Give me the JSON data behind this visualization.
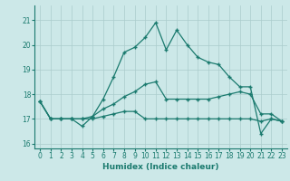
{
  "title": "",
  "xlabel": "Humidex (Indice chaleur)",
  "background_color": "#cce8e8",
  "grid_color": "#aacccc",
  "line_color": "#1a7a6e",
  "xlim": [
    -0.5,
    23.5
  ],
  "ylim": [
    15.8,
    21.6
  ],
  "yticks": [
    16,
    17,
    18,
    19,
    20,
    21
  ],
  "xticks": [
    0,
    1,
    2,
    3,
    4,
    5,
    6,
    7,
    8,
    9,
    10,
    11,
    12,
    13,
    14,
    15,
    16,
    17,
    18,
    19,
    20,
    21,
    22,
    23
  ],
  "line1_x": [
    0,
    1,
    2,
    3,
    4,
    5,
    6,
    7,
    8,
    9,
    10,
    11,
    12,
    13,
    14,
    15,
    16,
    17,
    18,
    19,
    20,
    21,
    22,
    23
  ],
  "line1_y": [
    17.7,
    17.0,
    17.0,
    17.0,
    16.7,
    17.1,
    17.8,
    18.7,
    19.7,
    19.9,
    20.3,
    20.9,
    19.8,
    20.6,
    20.0,
    19.5,
    19.3,
    19.2,
    18.7,
    18.3,
    18.3,
    16.4,
    17.0,
    16.9
  ],
  "line2_x": [
    0,
    1,
    2,
    3,
    4,
    5,
    6,
    7,
    8,
    9,
    10,
    11,
    12,
    13,
    14,
    15,
    16,
    17,
    18,
    19,
    20,
    21,
    22,
    23
  ],
  "line2_y": [
    17.7,
    17.0,
    17.0,
    17.0,
    17.0,
    17.0,
    17.1,
    17.2,
    17.3,
    17.3,
    17.0,
    17.0,
    17.0,
    17.0,
    17.0,
    17.0,
    17.0,
    17.0,
    17.0,
    17.0,
    17.0,
    16.9,
    17.0,
    16.9
  ],
  "line3_x": [
    0,
    1,
    2,
    3,
    4,
    5,
    6,
    7,
    8,
    9,
    10,
    11,
    12,
    13,
    14,
    15,
    16,
    17,
    18,
    19,
    20,
    21,
    22,
    23
  ],
  "line3_y": [
    17.7,
    17.0,
    17.0,
    17.0,
    17.0,
    17.1,
    17.4,
    17.6,
    17.9,
    18.1,
    18.4,
    18.5,
    17.8,
    17.8,
    17.8,
    17.8,
    17.8,
    17.9,
    18.0,
    18.1,
    18.0,
    17.2,
    17.2,
    16.9
  ],
  "figsize": [
    3.2,
    2.0
  ],
  "dpi": 100
}
